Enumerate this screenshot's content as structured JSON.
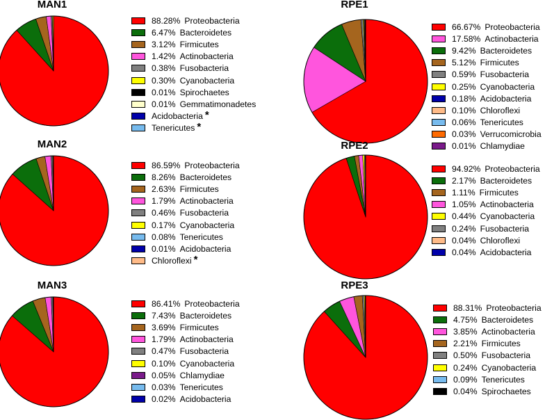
{
  "chart_data": [
    {
      "type": "pie",
      "title": "MAN1",
      "legend_placement": "right",
      "slices": [
        {
          "label": "Proteobacteria",
          "value": 88.28,
          "display": "88.28%",
          "color": "#ff0000"
        },
        {
          "label": "Bacteroidetes",
          "value": 6.47,
          "display": "6.47%",
          "color": "#0b6e0b"
        },
        {
          "label": "Firmicutes",
          "value": 3.12,
          "display": "3.12%",
          "color": "#a5651e"
        },
        {
          "label": "Actinobacteria",
          "value": 1.42,
          "display": "1.42%",
          "color": "#ff55dd"
        },
        {
          "label": "Fusobacteria",
          "value": 0.38,
          "display": "0.38%",
          "color": "#808080"
        },
        {
          "label": "Cyanobacteria",
          "value": 0.3,
          "display": "0.30%",
          "color": "#ffff00"
        },
        {
          "label": "Spirochaetes",
          "value": 0.01,
          "display": "0.01%",
          "color": "#000000"
        },
        {
          "label": "Gemmatimonadetes",
          "value": 0.01,
          "display": "0.01%",
          "color": "#ffffcc"
        },
        {
          "label": "Acidobacteria",
          "value": 0,
          "display": "",
          "color": "#0000aa",
          "star": "*"
        },
        {
          "label": "Tenericutes",
          "value": 0,
          "display": "",
          "color": "#77bbee",
          "star": "*"
        }
      ]
    },
    {
      "type": "pie",
      "title": "MAN2",
      "legend_placement": "right",
      "slices": [
        {
          "label": "Proteobacteria",
          "value": 86.59,
          "display": "86.59%",
          "color": "#ff0000"
        },
        {
          "label": "Bacteroidetes",
          "value": 8.26,
          "display": "8.26%",
          "color": "#0b6e0b"
        },
        {
          "label": "Firmicutes",
          "value": 2.63,
          "display": "2.63%",
          "color": "#a5651e"
        },
        {
          "label": "Actinobacteria",
          "value": 1.79,
          "display": "1.79%",
          "color": "#ff55dd"
        },
        {
          "label": "Fusobacteria",
          "value": 0.46,
          "display": "0.46%",
          "color": "#808080"
        },
        {
          "label": "Cyanobacteria",
          "value": 0.17,
          "display": "0.17%",
          "color": "#ffff00"
        },
        {
          "label": "Tenericutes",
          "value": 0.08,
          "display": "0.08%",
          "color": "#77bbee"
        },
        {
          "label": "Acidobacteria",
          "value": 0.01,
          "display": "0.01%",
          "color": "#0000aa"
        },
        {
          "label": "Chloroflexi",
          "value": 0,
          "display": "",
          "color": "#ffbb88",
          "star": "*"
        }
      ]
    },
    {
      "type": "pie",
      "title": "MAN3",
      "legend_placement": "right",
      "slices": [
        {
          "label": "Proteobacteria",
          "value": 86.41,
          "display": "86.41%",
          "color": "#ff0000"
        },
        {
          "label": "Bacteroidetes",
          "value": 7.43,
          "display": "7.43%",
          "color": "#0b6e0b"
        },
        {
          "label": "Firmicutes",
          "value": 3.69,
          "display": "3.69%",
          "color": "#a5651e"
        },
        {
          "label": "Actinobacteria",
          "value": 1.79,
          "display": "1.79%",
          "color": "#ff55dd"
        },
        {
          "label": "Fusobacteria",
          "value": 0.47,
          "display": "0.47%",
          "color": "#808080"
        },
        {
          "label": "Cyanobacteria",
          "value": 0.1,
          "display": "0.10%",
          "color": "#ffff00"
        },
        {
          "label": "Chlamydiae",
          "value": 0.05,
          "display": "0.05%",
          "color": "#7a1a8a"
        },
        {
          "label": "Tenericutes",
          "value": 0.03,
          "display": "0.03%",
          "color": "#77bbee"
        },
        {
          "label": "Acidobacteria",
          "value": 0.02,
          "display": "0.02%",
          "color": "#0000aa"
        }
      ]
    },
    {
      "type": "pie",
      "title": "RPE1",
      "legend_placement": "right",
      "slices": [
        {
          "label": "Proteobacteria",
          "value": 66.67,
          "display": "66.67%",
          "color": "#ff0000"
        },
        {
          "label": "Actinobacteria",
          "value": 17.58,
          "display": "17.58%",
          "color": "#ff55dd"
        },
        {
          "label": "Bacteroidetes",
          "value": 9.42,
          "display": "9.42%",
          "color": "#0b6e0b"
        },
        {
          "label": "Firmicutes",
          "value": 5.12,
          "display": "5.12%",
          "color": "#a5651e"
        },
        {
          "label": "Fusobacteria",
          "value": 0.59,
          "display": "0.59%",
          "color": "#808080"
        },
        {
          "label": "Cyanobacteria",
          "value": 0.25,
          "display": "0.25%",
          "color": "#ffff00"
        },
        {
          "label": "Acidobacteria",
          "value": 0.18,
          "display": "0.18%",
          "color": "#0000aa"
        },
        {
          "label": "Chloroflexi",
          "value": 0.1,
          "display": "0.10%",
          "color": "#ffbb88"
        },
        {
          "label": "Tenericutes",
          "value": 0.06,
          "display": "0.06%",
          "color": "#77bbee"
        },
        {
          "label": "Verrucomicrobia",
          "value": 0.03,
          "display": "0.03%",
          "color": "#ff6a00"
        },
        {
          "label": "Chlamydiae",
          "value": 0.01,
          "display": "0.01%",
          "color": "#7a1a8a"
        }
      ]
    },
    {
      "type": "pie",
      "title": "RPE2",
      "legend_placement": "right",
      "slices": [
        {
          "label": "Proteobacteria",
          "value": 94.92,
          "display": "94.92%",
          "color": "#ff0000"
        },
        {
          "label": "Bacteroidetes",
          "value": 2.17,
          "display": "2.17%",
          "color": "#0b6e0b"
        },
        {
          "label": "Firmicutes",
          "value": 1.11,
          "display": "1.11%",
          "color": "#a5651e"
        },
        {
          "label": "Actinobacteria",
          "value": 1.05,
          "display": "1.05%",
          "color": "#ff55dd"
        },
        {
          "label": "Cyanobacteria",
          "value": 0.44,
          "display": "0.44%",
          "color": "#ffff00"
        },
        {
          "label": "Fusobacteria",
          "value": 0.24,
          "display": "0.24%",
          "color": "#808080"
        },
        {
          "label": "Chloroflexi",
          "value": 0.04,
          "display": "0.04%",
          "color": "#ffbb88"
        },
        {
          "label": "Acidobacteria",
          "value": 0.04,
          "display": "0.04%",
          "color": "#0000aa"
        }
      ]
    },
    {
      "type": "pie",
      "title": "RPE3",
      "legend_placement": "right",
      "slices": [
        {
          "label": "Proteobacteria",
          "value": 88.31,
          "display": "88.31%",
          "color": "#ff0000"
        },
        {
          "label": "Bacteroidetes",
          "value": 4.75,
          "display": "4.75%",
          "color": "#0b6e0b"
        },
        {
          "label": "Actinobacteria",
          "value": 3.85,
          "display": "3.85%",
          "color": "#ff55dd"
        },
        {
          "label": "Firmicutes",
          "value": 2.21,
          "display": "2.21%",
          "color": "#a5651e"
        },
        {
          "label": "Fusobacteria",
          "value": 0.5,
          "display": "0.50%",
          "color": "#808080"
        },
        {
          "label": "Cyanobacteria",
          "value": 0.24,
          "display": "0.24%",
          "color": "#ffff00"
        },
        {
          "label": "Tenericutes",
          "value": 0.09,
          "display": "0.09%",
          "color": "#77bbee"
        },
        {
          "label": "Spirochaetes",
          "value": 0.04,
          "display": "0.04%",
          "color": "#000000"
        }
      ]
    }
  ]
}
